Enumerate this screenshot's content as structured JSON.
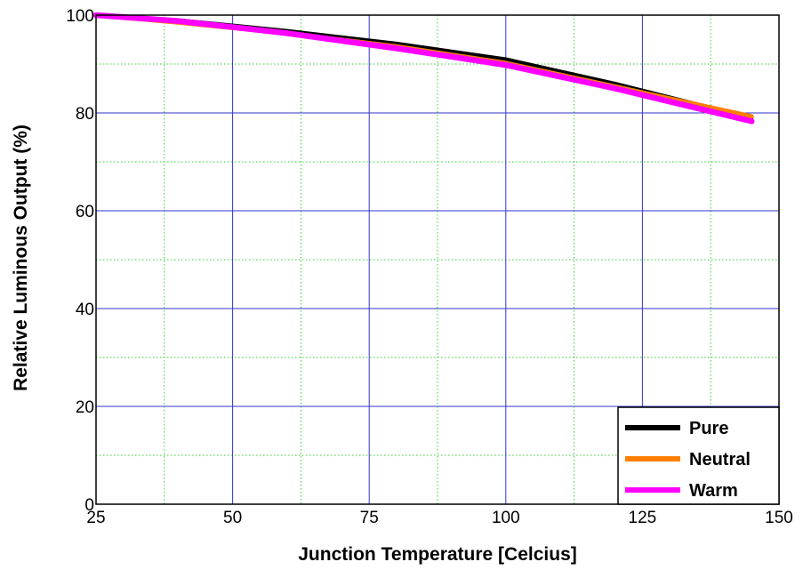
{
  "chart_data": {
    "type": "line",
    "xlabel": "Junction Temperature [Celcius]",
    "ylabel": "Relative Luminous Output (%)",
    "xlim": [
      25,
      150
    ],
    "ylim": [
      0,
      100
    ],
    "x_ticks": [
      25,
      50,
      75,
      100,
      125,
      150
    ],
    "y_ticks": [
      0,
      20,
      40,
      60,
      80,
      100
    ],
    "x_tick_labels": [
      "25",
      "50",
      "75",
      "100",
      "125",
      "150"
    ],
    "y_tick_labels": [
      "0",
      "20",
      "40",
      "60",
      "80",
      "100"
    ],
    "grid": {
      "major": true,
      "minor": true,
      "major_color": "#3333cc",
      "minor_color": "#33cc33"
    },
    "legend_position": "bottom-right",
    "series": [
      {
        "name": "Pure",
        "color": "#000000",
        "x": [
          25,
          40,
          60,
          80,
          100,
          120,
          145
        ],
        "y": [
          100,
          99,
          96.8,
          94.2,
          91,
          86,
          79
        ]
      },
      {
        "name": "Neutral",
        "color": "#ff7f00",
        "x": [
          25,
          40,
          60,
          80,
          100,
          120,
          145
        ],
        "y": [
          100,
          98.5,
          96.3,
          93.6,
          90.2,
          85.4,
          79.3
        ]
      },
      {
        "name": "Warm",
        "color": "#ff00ff",
        "x": [
          25,
          40,
          60,
          80,
          100,
          120,
          145
        ],
        "y": [
          100,
          98.8,
          96.3,
          93.2,
          89.8,
          85,
          78.3
        ]
      }
    ]
  }
}
